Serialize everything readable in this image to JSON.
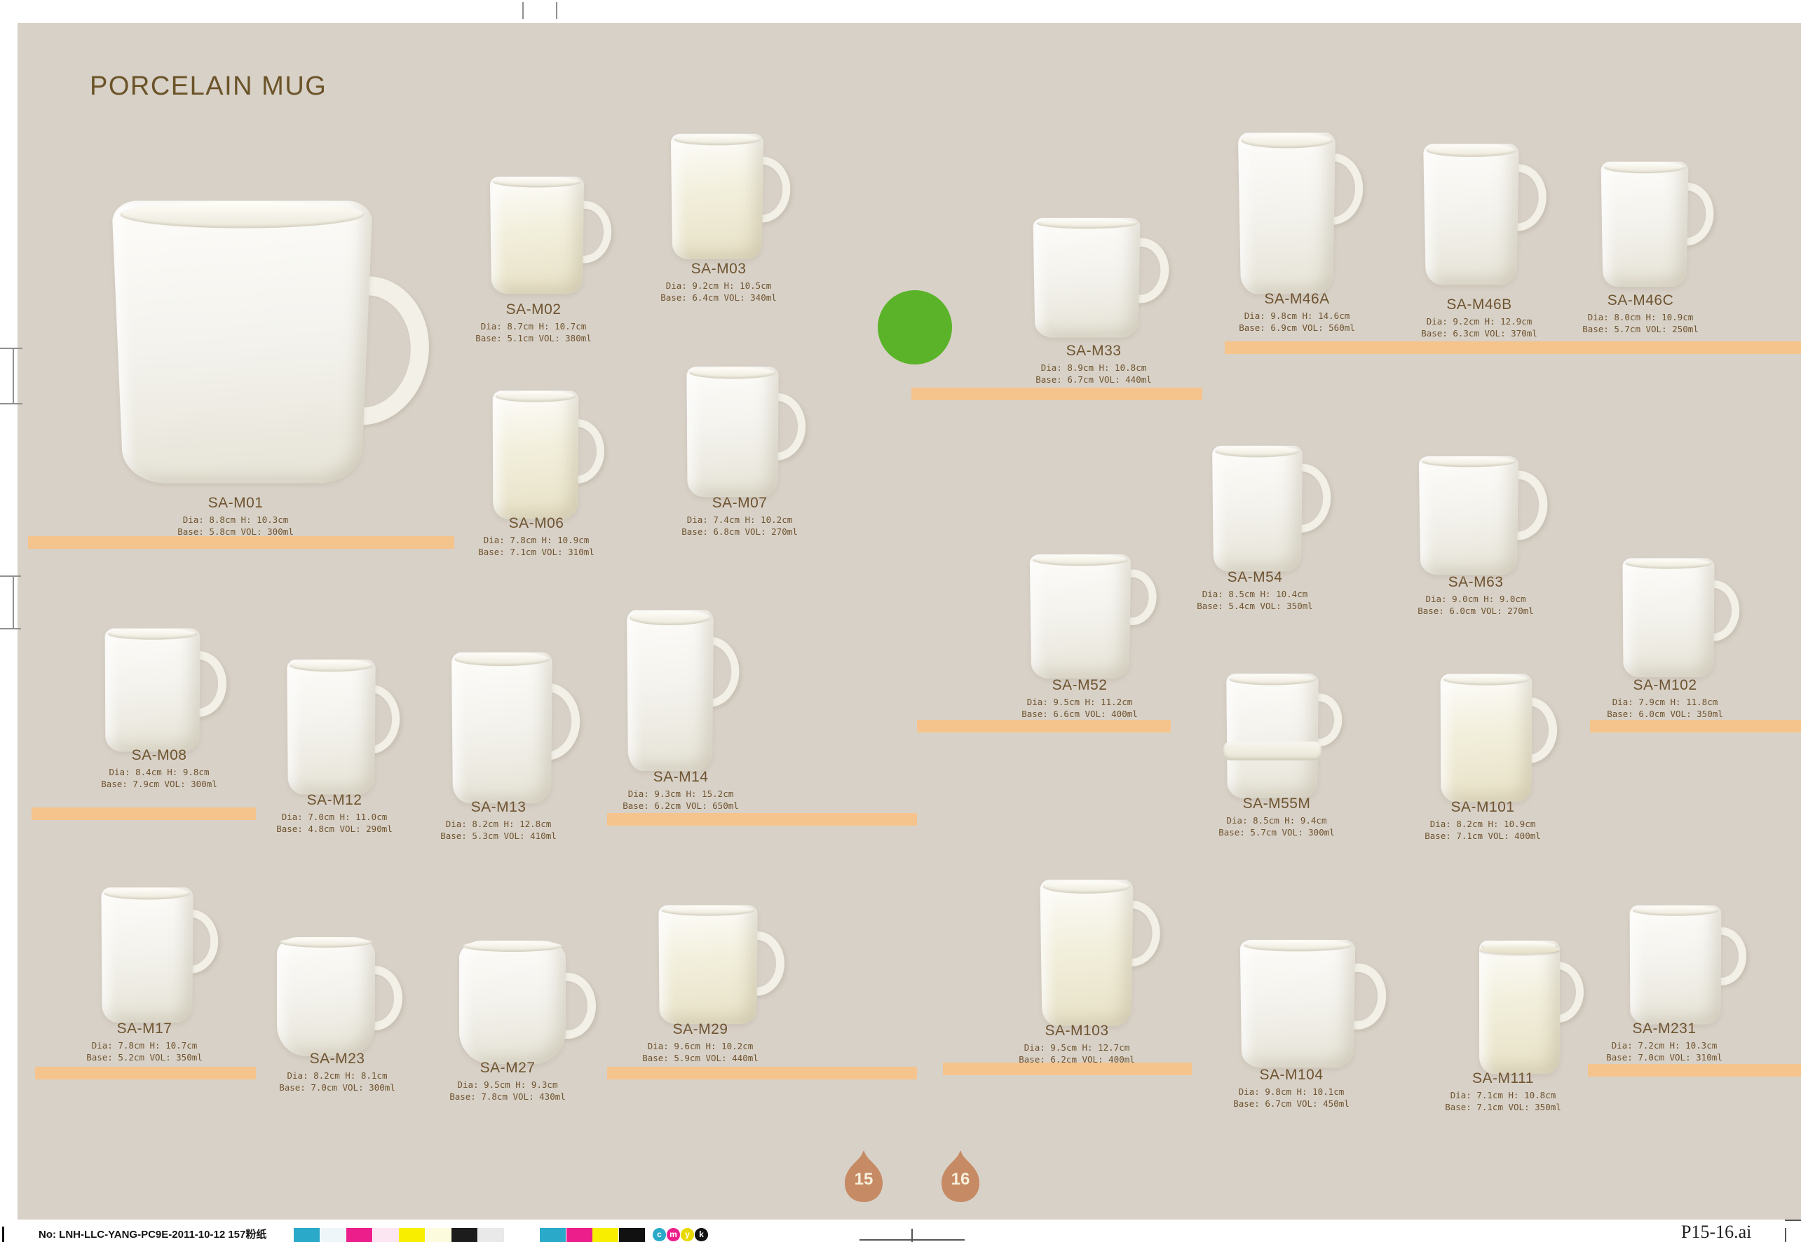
{
  "page": {
    "title": "PORCELAIN MUG",
    "page_numbers": [
      "15",
      "16"
    ],
    "colors": {
      "background": "#d8d1c7",
      "title_text": "#6b5329",
      "label_text": "#6e5430",
      "shelf_bar": "#f5c48c",
      "accent_circle": "#5ab328",
      "page_tab": "#c68a64"
    }
  },
  "footer": {
    "print_no": "No: LNH-LLC-YANG-PC9E-2011-10-12  157粉纸",
    "file_name": "P15-16.ai",
    "color_bar_tints": [
      "#2aa9c9",
      "#eef6f9",
      "#ec1e8c",
      "#fbe6f1",
      "#f8ef00",
      "#fdfbde",
      "#1c1c1c",
      "#e9e9e9"
    ],
    "color_bar_solids": [
      "#2aa9c9",
      "#ec1e8c",
      "#f8ef00",
      "#111111"
    ],
    "cmyk_marks": [
      {
        "letter": "c",
        "color": "#2aa9c9"
      },
      {
        "letter": "m",
        "color": "#ec1e8c"
      },
      {
        "letter": "y",
        "color": "#e8d900"
      },
      {
        "letter": "k",
        "color": "#111111"
      }
    ]
  },
  "products": [
    {
      "code": "SA-M01",
      "line1": "Dia: 8.8cm H: 10.3cm",
      "line2": "Base: 5.8cm VOL: 300ml"
    },
    {
      "code": "SA-M02",
      "line1": "Dia: 8.7cm H: 10.7cm",
      "line2": "Base: 5.1cm VOL: 380ml"
    },
    {
      "code": "SA-M03",
      "line1": "Dia: 9.2cm H: 10.5cm",
      "line2": "Base: 6.4cm VOL: 340ml"
    },
    {
      "code": "SA-M06",
      "line1": "Dia: 7.8cm H: 10.9cm",
      "line2": "Base: 7.1cm VOL: 310ml"
    },
    {
      "code": "SA-M07",
      "line1": "Dia: 7.4cm H: 10.2cm",
      "line2": "Base: 6.8cm VOL: 270ml"
    },
    {
      "code": "SA-M33",
      "line1": "Dia: 8.9cm H: 10.8cm",
      "line2": "Base: 6.7cm VOL: 440ml"
    },
    {
      "code": "SA-M46A",
      "line1": "Dia: 9.8cm H: 14.6cm",
      "line2": "Base: 6.9cm VOL: 560ml"
    },
    {
      "code": "SA-M46B",
      "line1": "Dia: 9.2cm H: 12.9cm",
      "line2": "Base: 6.3cm VOL: 370ml"
    },
    {
      "code": "SA-M46C",
      "line1": "Dia: 8.0cm H: 10.9cm",
      "line2": "Base: 5.7cm VOL: 250ml"
    },
    {
      "code": "SA-M08",
      "line1": "Dia: 8.4cm H: 9.8cm",
      "line2": "Base: 7.9cm VOL: 300ml"
    },
    {
      "code": "SA-M12",
      "line1": "Dia: 7.0cm H: 11.0cm",
      "line2": "Base: 4.8cm VOL: 290ml"
    },
    {
      "code": "SA-M13",
      "line1": "Dia: 8.2cm H: 12.8cm",
      "line2": "Base: 5.3cm VOL: 410ml"
    },
    {
      "code": "SA-M14",
      "line1": "Dia: 9.3cm H: 15.2cm",
      "line2": "Base: 6.2cm VOL: 650ml"
    },
    {
      "code": "SA-M52",
      "line1": "Dia: 9.5cm H: 11.2cm",
      "line2": "Base: 6.6cm VOL: 400ml"
    },
    {
      "code": "SA-M54",
      "line1": "Dia: 8.5cm H: 10.4cm",
      "line2": "Base: 5.4cm VOL: 350ml"
    },
    {
      "code": "SA-M63",
      "line1": "Dia: 9.0cm H: 9.0cm",
      "line2": "Base: 6.0cm VOL: 270ml"
    },
    {
      "code": "SA-M102",
      "line1": "Dia: 7.9cm H: 11.8cm",
      "line2": "Base: 6.0cm VOL: 350ml"
    },
    {
      "code": "SA-M55M",
      "line1": "Dia: 8.5cm H: 9.4cm",
      "line2": "Base: 5.7cm VOL: 300ml"
    },
    {
      "code": "SA-M101",
      "line1": "Dia: 8.2cm H: 10.9cm",
      "line2": "Base: 7.1cm VOL: 400ml"
    },
    {
      "code": "SA-M17",
      "line1": "Dia: 7.8cm H: 10.7cm",
      "line2": "Base: 5.2cm VOL: 350ml"
    },
    {
      "code": "SA-M23",
      "line1": "Dia: 8.2cm H: 8.1cm",
      "line2": "Base: 7.0cm VOL: 300ml"
    },
    {
      "code": "SA-M27",
      "line1": "Dia: 9.5cm H: 9.3cm",
      "line2": "Base: 7.8cm VOL: 430ml"
    },
    {
      "code": "SA-M29",
      "line1": "Dia: 9.6cm H: 10.2cm",
      "line2": "Base: 5.9cm VOL: 440ml"
    },
    {
      "code": "SA-M103",
      "line1": "Dia: 9.5cm H: 12.7cm",
      "line2": "Base: 6.2cm VOL: 400ml"
    },
    {
      "code": "SA-M104",
      "line1": "Dia: 9.8cm H: 10.1cm",
      "line2": "Base: 6.7cm VOL: 450ml"
    },
    {
      "code": "SA-M111",
      "line1": "Dia: 7.1cm H: 10.8cm",
      "line2": "Base: 7.1cm VOL: 350ml"
    },
    {
      "code": "SA-M231",
      "line1": "Dia: 7.2cm H: 10.3cm",
      "line2": "Base: 7.0cm VOL: 310ml"
    }
  ]
}
